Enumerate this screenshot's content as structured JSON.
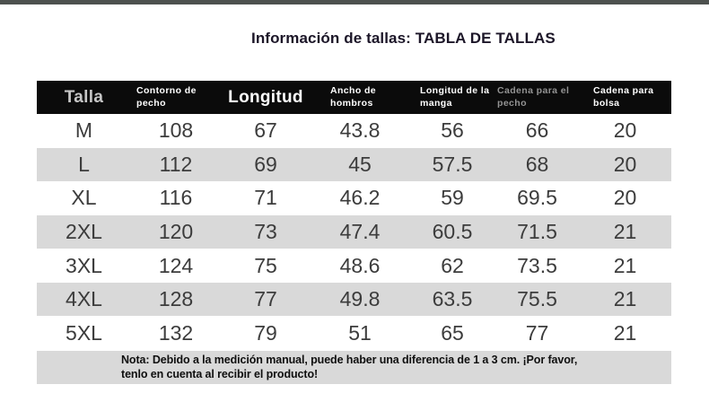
{
  "page": {
    "title": "Información de tallas: TABLA DE TALLAS"
  },
  "table": {
    "columns": [
      {
        "label": "Talla"
      },
      {
        "label": "Contorno de pecho"
      },
      {
        "label": "Longitud"
      },
      {
        "label": "Ancho de hombros"
      },
      {
        "label": "Longitud de la manga"
      },
      {
        "label": "Cadena para el pecho"
      },
      {
        "label": "Cadena para bolsa"
      }
    ],
    "rows": [
      [
        "M",
        "108",
        "67",
        "43.8",
        "56",
        "66",
        "20"
      ],
      [
        "L",
        "112",
        "69",
        "45",
        "57.5",
        "68",
        "20"
      ],
      [
        "XL",
        "116",
        "71",
        "46.2",
        "59",
        "69.5",
        "20"
      ],
      [
        "2XL",
        "120",
        "73",
        "47.4",
        "60.5",
        "71.5",
        "21"
      ],
      [
        "3XL",
        "124",
        "75",
        "48.6",
        "62",
        "73.5",
        "21"
      ],
      [
        "4XL",
        "128",
        "77",
        "49.8",
        "63.5",
        "75.5",
        "21"
      ],
      [
        "5XL",
        "132",
        "79",
        "51",
        "65",
        "77",
        "21"
      ]
    ],
    "note_line1": "Nota: Debido a la medición manual, puede haber una diferencia de 1 a 3 cm. ¡Por favor,",
    "note_line2": "tenlo en cuenta al recibir el producto!"
  },
  "colors": {
    "header_bg": "#0b0b0b",
    "header_text": "#ffffff",
    "header_text_dim_talla": "#c6c6c6",
    "header_text_dim_cadena_pecho": "#939393",
    "row_alt_bg": "#d9d9d9",
    "note_bg": "#d9d9d9",
    "body_text": "#3c3c3c",
    "title_text": "#1c1628",
    "top_strip": "#4d514f"
  }
}
